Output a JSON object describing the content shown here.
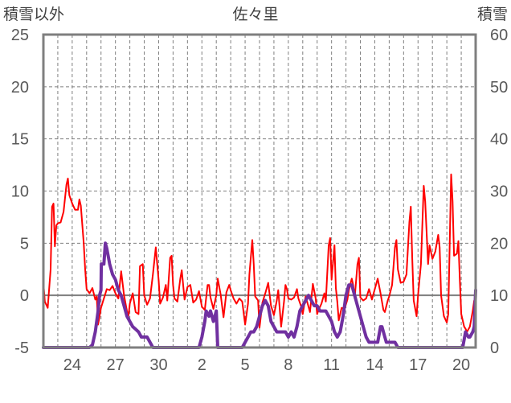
{
  "chart_data": {
    "type": "line",
    "title": "佐々里",
    "left_axis_label": "積雪以外",
    "right_axis_label": "積雪",
    "y_left": {
      "min": -5,
      "max": 25,
      "ticks": [
        -5,
        0,
        5,
        10,
        15,
        20,
        25
      ]
    },
    "y_right": {
      "min": 0,
      "max": 60,
      "ticks": [
        0,
        10,
        20,
        30,
        40,
        50,
        60
      ]
    },
    "x": {
      "min": 0,
      "max": 30,
      "major_ticks": [
        {
          "pos": 2,
          "label": "24"
        },
        {
          "pos": 5,
          "label": "27"
        },
        {
          "pos": 8,
          "label": "30"
        },
        {
          "pos": 11,
          "label": "2"
        },
        {
          "pos": 14,
          "label": "5"
        },
        {
          "pos": 17,
          "label": "8"
        },
        {
          "pos": 20,
          "label": "11"
        },
        {
          "pos": 23,
          "label": "14"
        },
        {
          "pos": 26,
          "label": "17"
        },
        {
          "pos": 29,
          "label": "20"
        }
      ]
    },
    "grid": true,
    "series": [
      {
        "color": "#ff0000",
        "axis": "left",
        "points": [
          [
            0.0,
            1.2
          ],
          [
            0.1,
            -0.6
          ],
          [
            0.3,
            -1.2
          ],
          [
            0.5,
            2.5
          ],
          [
            0.6,
            8.5
          ],
          [
            0.7,
            8.8
          ],
          [
            0.8,
            4.7
          ],
          [
            0.9,
            6.7
          ],
          [
            1.0,
            6.9
          ],
          [
            1.2,
            7.0
          ],
          [
            1.4,
            8.0
          ],
          [
            1.6,
            10.6
          ],
          [
            1.7,
            11.2
          ],
          [
            1.8,
            9.6
          ],
          [
            2.0,
            8.8
          ],
          [
            2.2,
            8.2
          ],
          [
            2.4,
            8.2
          ],
          [
            2.5,
            9.2
          ],
          [
            2.6,
            8.6
          ],
          [
            2.8,
            5.0
          ],
          [
            2.9,
            2.5
          ],
          [
            3.0,
            0.6
          ],
          [
            3.2,
            0.2
          ],
          [
            3.4,
            0.7
          ],
          [
            3.6,
            -0.4
          ],
          [
            3.7,
            -0.1
          ],
          [
            3.8,
            -2.8
          ],
          [
            4.0,
            -1.2
          ],
          [
            4.2,
            -0.3
          ],
          [
            4.4,
            0.6
          ],
          [
            4.6,
            0.5
          ],
          [
            4.8,
            0.9
          ],
          [
            5.0,
            0.2
          ],
          [
            5.2,
            -0.3
          ],
          [
            5.4,
            2.3
          ],
          [
            5.6,
            0.0
          ],
          [
            5.8,
            -1.5
          ],
          [
            5.9,
            -2.0
          ],
          [
            6.0,
            -0.8
          ],
          [
            6.2,
            0.2
          ],
          [
            6.4,
            -1.6
          ],
          [
            6.6,
            -1.8
          ],
          [
            6.7,
            2.8
          ],
          [
            6.9,
            3.0
          ],
          [
            7.0,
            0.0
          ],
          [
            7.2,
            -0.9
          ],
          [
            7.4,
            -0.3
          ],
          [
            7.6,
            2.0
          ],
          [
            7.8,
            4.6
          ],
          [
            8.0,
            1.4
          ],
          [
            8.1,
            -0.8
          ],
          [
            8.3,
            -0.2
          ],
          [
            8.5,
            1.0
          ],
          [
            8.6,
            -0.5
          ],
          [
            8.8,
            3.6
          ],
          [
            8.9,
            3.8
          ],
          [
            9.0,
            1.0
          ],
          [
            9.1,
            -0.3
          ],
          [
            9.3,
            -0.6
          ],
          [
            9.5,
            1.6
          ],
          [
            9.6,
            2.4
          ],
          [
            9.8,
            -0.4
          ],
          [
            10.0,
            0.8
          ],
          [
            10.2,
            1.0
          ],
          [
            10.4,
            -0.7
          ],
          [
            10.6,
            -0.4
          ],
          [
            10.8,
            0.4
          ],
          [
            11.0,
            -1.1
          ],
          [
            11.2,
            -1.4
          ],
          [
            11.4,
            1.0
          ],
          [
            11.5,
            1.0
          ],
          [
            11.6,
            -0.2
          ],
          [
            11.8,
            -1.3
          ],
          [
            12.0,
            0.0
          ],
          [
            12.1,
            1.6
          ],
          [
            12.3,
            0.1
          ],
          [
            12.5,
            -2.1
          ],
          [
            12.7,
            0.3
          ],
          [
            12.9,
            1.0
          ],
          [
            13.0,
            0.5
          ],
          [
            13.2,
            -0.3
          ],
          [
            13.4,
            -0.8
          ],
          [
            13.6,
            -0.3
          ],
          [
            13.8,
            -0.6
          ],
          [
            14.0,
            -2.8
          ],
          [
            14.2,
            -0.8
          ],
          [
            14.3,
            2.0
          ],
          [
            14.5,
            5.3
          ],
          [
            14.6,
            3.0
          ],
          [
            14.7,
            -0.1
          ],
          [
            14.9,
            -0.5
          ],
          [
            15.0,
            -3.1
          ],
          [
            15.2,
            -0.7
          ],
          [
            15.4,
            0.2
          ],
          [
            15.6,
            1.2
          ],
          [
            15.8,
            -1.0
          ],
          [
            16.0,
            -1.9
          ],
          [
            16.2,
            -0.5
          ],
          [
            16.3,
            0.5
          ],
          [
            16.5,
            -3.0
          ],
          [
            16.7,
            -0.6
          ],
          [
            16.8,
            1.0
          ],
          [
            16.9,
            0.6
          ],
          [
            17.0,
            -0.3
          ],
          [
            17.2,
            -0.4
          ],
          [
            17.4,
            -0.2
          ],
          [
            17.6,
            0.6
          ],
          [
            17.7,
            -0.3
          ],
          [
            17.9,
            -1.1
          ],
          [
            18.0,
            -1.8
          ],
          [
            18.2,
            -0.1
          ],
          [
            18.3,
            -0.6
          ],
          [
            18.5,
            -1.6
          ],
          [
            18.7,
            1.1
          ],
          [
            18.9,
            -0.3
          ],
          [
            19.0,
            -1.8
          ],
          [
            19.1,
            -1.4
          ],
          [
            19.3,
            -0.8
          ],
          [
            19.5,
            0.2
          ],
          [
            19.6,
            -0.6
          ],
          [
            19.8,
            4.8
          ],
          [
            19.9,
            5.5
          ],
          [
            20.0,
            1.5
          ],
          [
            20.2,
            4.8
          ],
          [
            20.3,
            0.7
          ],
          [
            20.4,
            -0.6
          ],
          [
            20.5,
            -2.4
          ],
          [
            20.7,
            -1.2
          ],
          [
            20.9,
            -1.3
          ],
          [
            21.1,
            -0.4
          ],
          [
            21.2,
            0.5
          ],
          [
            21.4,
            1.6
          ],
          [
            21.5,
            1.0
          ],
          [
            21.6,
            -0.3
          ],
          [
            21.8,
            3.0
          ],
          [
            21.9,
            3.6
          ],
          [
            22.0,
            -0.2
          ],
          [
            22.2,
            -0.5
          ],
          [
            22.4,
            -0.3
          ],
          [
            22.6,
            0.6
          ],
          [
            22.8,
            -0.4
          ],
          [
            23.0,
            0.6
          ],
          [
            23.2,
            1.6
          ],
          [
            23.4,
            0.2
          ],
          [
            23.6,
            -1.4
          ],
          [
            23.7,
            -1.6
          ],
          [
            23.9,
            -0.5
          ],
          [
            24.0,
            -0.1
          ],
          [
            24.2,
            1.0
          ],
          [
            24.4,
            4.6
          ],
          [
            24.5,
            5.3
          ],
          [
            24.6,
            2.5
          ],
          [
            24.8,
            1.2
          ],
          [
            25.0,
            1.3
          ],
          [
            25.2,
            2.0
          ],
          [
            25.4,
            7.0
          ],
          [
            25.5,
            8.5
          ],
          [
            25.6,
            3.5
          ],
          [
            25.7,
            -0.5
          ],
          [
            25.9,
            -2.0
          ],
          [
            26.0,
            0.0
          ],
          [
            26.2,
            3.0
          ],
          [
            26.4,
            10.5
          ],
          [
            26.5,
            9.0
          ],
          [
            26.7,
            3.0
          ],
          [
            26.8,
            4.8
          ],
          [
            27.0,
            3.5
          ],
          [
            27.2,
            4.2
          ],
          [
            27.4,
            5.8
          ],
          [
            27.5,
            4.6
          ],
          [
            27.6,
            0.0
          ],
          [
            27.8,
            -2.0
          ],
          [
            28.0,
            -2.6
          ],
          [
            28.1,
            -1.8
          ],
          [
            28.3,
            11.6
          ],
          [
            28.4,
            9.0
          ],
          [
            28.5,
            3.8
          ],
          [
            28.7,
            4.0
          ],
          [
            28.8,
            5.2
          ],
          [
            28.9,
            1.5
          ],
          [
            29.0,
            -1.8
          ],
          [
            29.2,
            -3.0
          ],
          [
            29.3,
            -3.2
          ],
          [
            29.4,
            -3.5
          ],
          [
            29.6,
            -3.0
          ],
          [
            29.8,
            -1.5
          ],
          [
            29.9,
            -0.5
          ],
          [
            30.0,
            -1.0
          ]
        ]
      },
      {
        "color": "#7030a0",
        "axis": "right",
        "points": [
          [
            0.0,
            0
          ],
          [
            3.2,
            0
          ],
          [
            3.4,
            0.5
          ],
          [
            3.6,
            3
          ],
          [
            3.8,
            7
          ],
          [
            3.9,
            10
          ],
          [
            4.0,
            11
          ],
          [
            4.02,
            16
          ],
          [
            4.2,
            16
          ],
          [
            4.3,
            20
          ],
          [
            4.4,
            19
          ],
          [
            4.6,
            16
          ],
          [
            4.8,
            14
          ],
          [
            5.0,
            13
          ],
          [
            5.2,
            11
          ],
          [
            5.4,
            10
          ],
          [
            5.6,
            8
          ],
          [
            5.8,
            6
          ],
          [
            6.0,
            5
          ],
          [
            6.2,
            4
          ],
          [
            6.4,
            3.5
          ],
          [
            6.6,
            3
          ],
          [
            6.8,
            2
          ],
          [
            7.0,
            2
          ],
          [
            7.2,
            2
          ],
          [
            7.4,
            1
          ],
          [
            7.6,
            0
          ],
          [
            10.8,
            0
          ],
          [
            11.0,
            2
          ],
          [
            11.2,
            5
          ],
          [
            11.3,
            7
          ],
          [
            11.5,
            6
          ],
          [
            11.6,
            7
          ],
          [
            11.8,
            5
          ],
          [
            12.0,
            7
          ],
          [
            12.1,
            0
          ],
          [
            12.2,
            0
          ],
          [
            12.3,
            0
          ],
          [
            13.8,
            0
          ],
          [
            14.0,
            1
          ],
          [
            14.2,
            2
          ],
          [
            14.4,
            3
          ],
          [
            14.6,
            3
          ],
          [
            14.8,
            4
          ],
          [
            15.0,
            6
          ],
          [
            15.2,
            8
          ],
          [
            15.4,
            9
          ],
          [
            15.6,
            8
          ],
          [
            15.8,
            5
          ],
          [
            16.0,
            4
          ],
          [
            16.2,
            3
          ],
          [
            16.4,
            3
          ],
          [
            16.6,
            3
          ],
          [
            16.8,
            3
          ],
          [
            17.0,
            2
          ],
          [
            17.2,
            3
          ],
          [
            17.4,
            2
          ],
          [
            17.6,
            4
          ],
          [
            17.8,
            7
          ],
          [
            18.0,
            8
          ],
          [
            18.2,
            9
          ],
          [
            18.4,
            10
          ],
          [
            18.6,
            9
          ],
          [
            18.8,
            8
          ],
          [
            19.0,
            8
          ],
          [
            19.2,
            7
          ],
          [
            19.4,
            7
          ],
          [
            19.6,
            7
          ],
          [
            19.8,
            6
          ],
          [
            20.0,
            5
          ],
          [
            20.1,
            4
          ],
          [
            20.2,
            3
          ],
          [
            20.4,
            2
          ],
          [
            20.6,
            3
          ],
          [
            20.8,
            6
          ],
          [
            21.0,
            10
          ],
          [
            21.2,
            12
          ],
          [
            21.4,
            12
          ],
          [
            21.6,
            10
          ],
          [
            21.8,
            8
          ],
          [
            22.0,
            6
          ],
          [
            22.2,
            4
          ],
          [
            22.4,
            2
          ],
          [
            22.6,
            1
          ],
          [
            22.8,
            1
          ],
          [
            23.0,
            1
          ],
          [
            23.2,
            1
          ],
          [
            23.4,
            4
          ],
          [
            23.5,
            4
          ],
          [
            23.6,
            3
          ],
          [
            23.8,
            1
          ],
          [
            24.0,
            1
          ],
          [
            24.2,
            1
          ],
          [
            24.4,
            1
          ],
          [
            24.6,
            0
          ],
          [
            29.1,
            0
          ],
          [
            29.3,
            3
          ],
          [
            29.5,
            2
          ],
          [
            29.6,
            2
          ],
          [
            29.8,
            3
          ],
          [
            29.9,
            4
          ],
          [
            30.0,
            11
          ]
        ]
      }
    ]
  }
}
